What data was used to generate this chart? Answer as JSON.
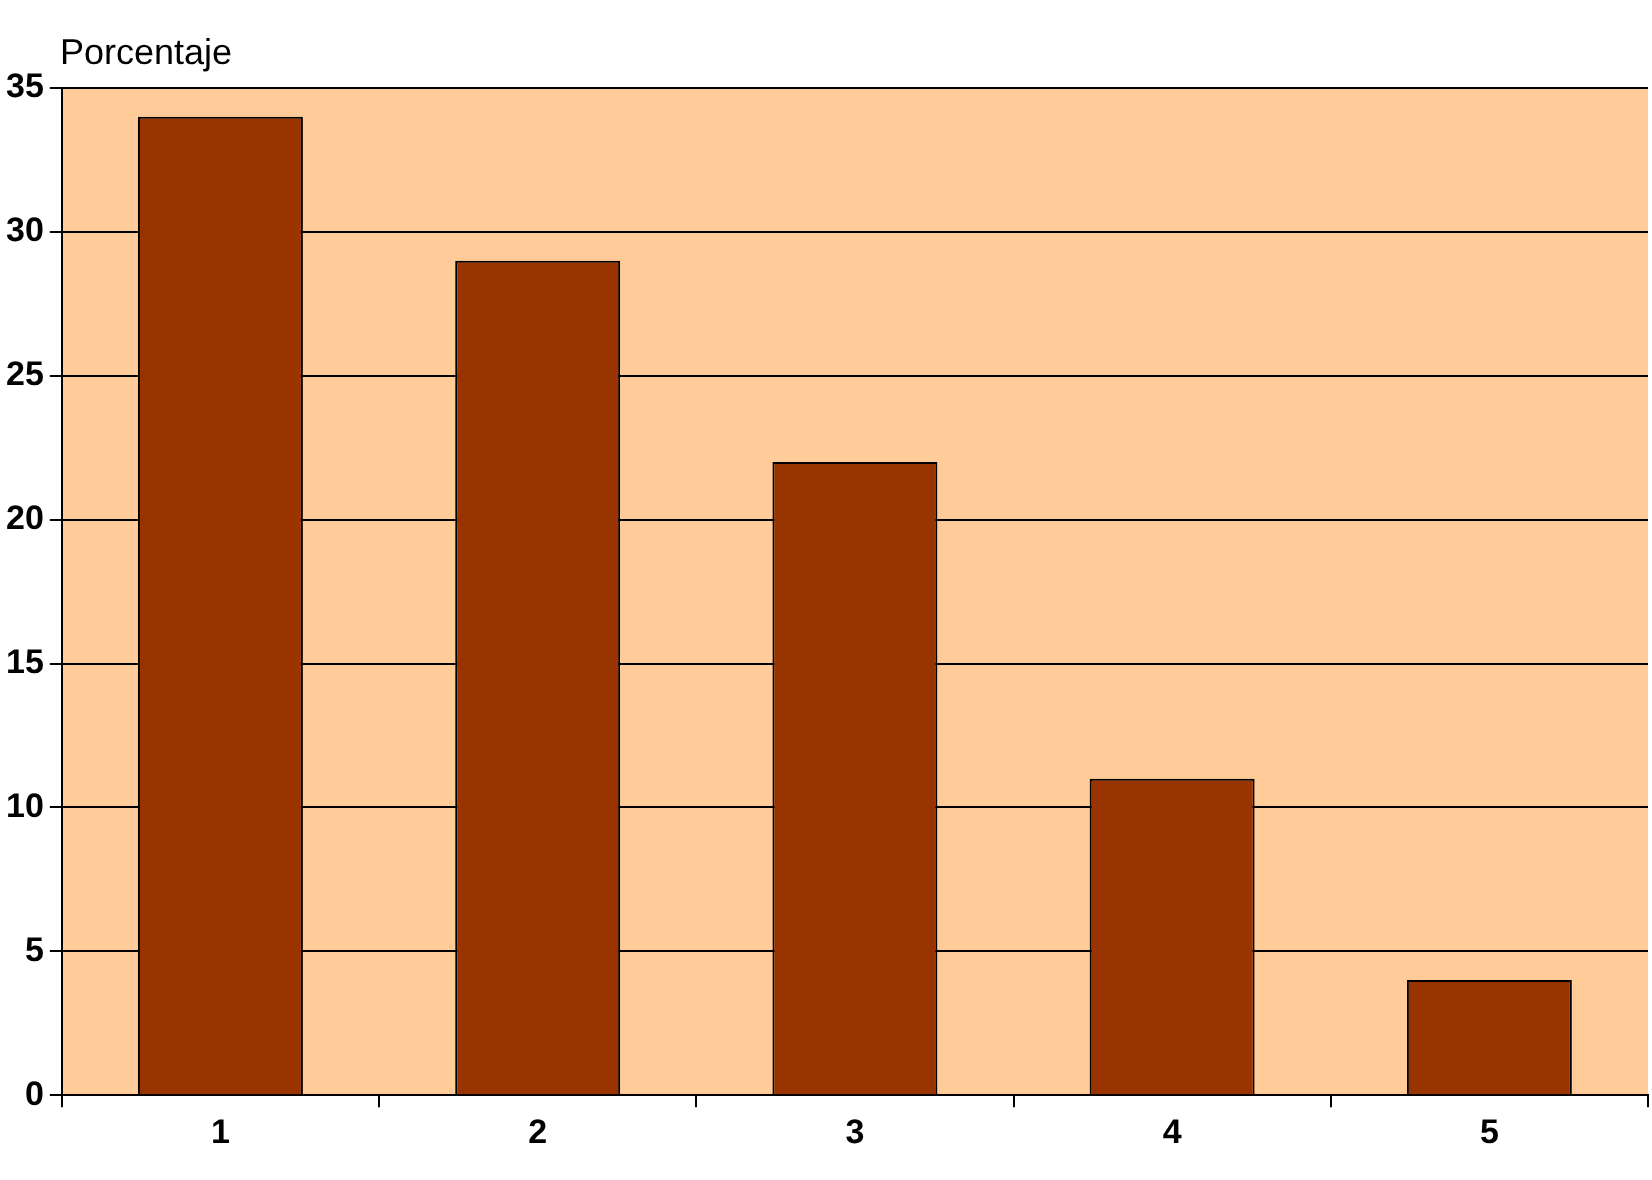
{
  "chart_data": {
    "type": "bar",
    "ylabel": "Porcentaje",
    "categories": [
      "1",
      "2",
      "3",
      "4",
      "5"
    ],
    "values": [
      34,
      29,
      22,
      11,
      4
    ],
    "color": "#993300",
    "ylim": [
      0,
      35
    ],
    "yticks": [
      0,
      5,
      10,
      15,
      20,
      25,
      30,
      35
    ],
    "grid": "y"
  }
}
